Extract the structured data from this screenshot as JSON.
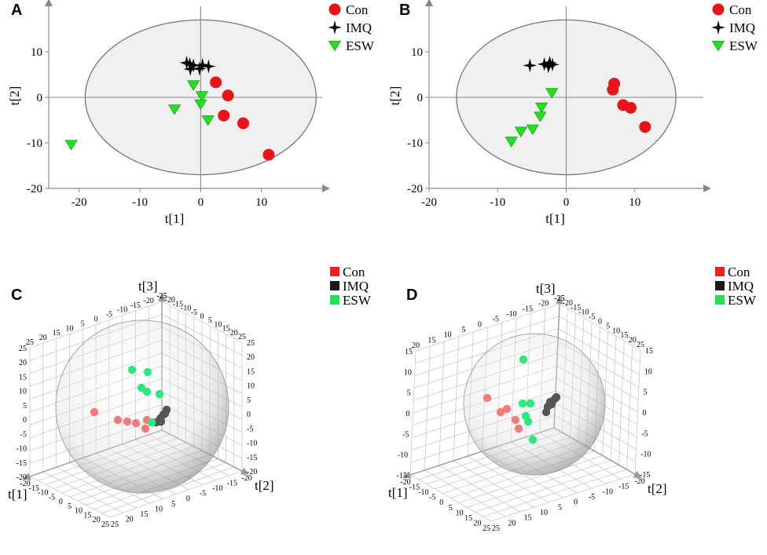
{
  "colors": {
    "con": "#e8141a",
    "imq": "#000000",
    "esw": "#22e01e",
    "ellipse_fill": "#f0f0f0",
    "ellipse_stroke": "#777777",
    "axis": "#888888"
  },
  "legend": {
    "con": "Con",
    "imq": "IMQ",
    "esw": "ESW"
  },
  "chart_data": [
    {
      "panel": "A",
      "type": "scatter",
      "xlabel": "t[1]",
      "ylabel": "t[2]",
      "xlim": [
        -25,
        20
      ],
      "ylim": [
        -20,
        20
      ],
      "xticks": [
        -20,
        -10,
        0,
        10
      ],
      "yticks": [
        -20,
        -10,
        0,
        10
      ],
      "ellipse": {
        "rx": 19,
        "ry": 17
      },
      "legend": [
        "Con",
        "IMQ",
        "ESW"
      ],
      "series": [
        {
          "name": "Con",
          "points": [
            [
              2.5,
              3.3
            ],
            [
              4.5,
              0.4
            ],
            [
              3.8,
              -4.0
            ],
            [
              7.0,
              -5.7
            ],
            [
              11.2,
              -12.6
            ]
          ]
        },
        {
          "name": "IMQ",
          "points": [
            [
              -2.3,
              7.6
            ],
            [
              -1.7,
              6.2
            ],
            [
              -1.2,
              7.0
            ],
            [
              -0.2,
              6.3
            ],
            [
              0.3,
              7.1
            ],
            [
              1.3,
              6.8
            ],
            [
              -1.8,
              7.3
            ]
          ]
        },
        {
          "name": "ESW",
          "points": [
            [
              -1.2,
              2.7
            ],
            [
              0.2,
              0.3
            ],
            [
              0.0,
              -1.5
            ],
            [
              -4.3,
              -2.6
            ],
            [
              1.2,
              -5.0
            ],
            [
              -21.3,
              -10.4
            ]
          ]
        }
      ]
    },
    {
      "panel": "B",
      "type": "scatter",
      "xlabel": "t[1]",
      "ylabel": "t[2]",
      "xlim": [
        -20,
        20
      ],
      "ylim": [
        -20,
        20
      ],
      "xticks": [
        -20,
        -10,
        0,
        10
      ],
      "yticks": [
        -20,
        -10,
        0,
        10
      ],
      "ellipse": {
        "rx": 16,
        "ry": 17
      },
      "legend": [
        "Con",
        "IMQ",
        "ESW"
      ],
      "series": [
        {
          "name": "Con",
          "points": [
            [
              6.8,
              1.7
            ],
            [
              7.0,
              3.0
            ],
            [
              8.3,
              -1.7
            ],
            [
              9.4,
              -2.3
            ],
            [
              11.5,
              -6.5
            ]
          ]
        },
        {
          "name": "IMQ",
          "points": [
            [
              -5.3,
              7.0
            ],
            [
              -3.2,
              7.3
            ],
            [
              -2.6,
              6.8
            ],
            [
              -2.0,
              7.2
            ],
            [
              -2.4,
              7.6
            ]
          ]
        },
        {
          "name": "ESW",
          "points": [
            [
              -2.1,
              1.0
            ],
            [
              -3.6,
              -2.2
            ],
            [
              -3.8,
              -4.2
            ],
            [
              -4.9,
              -7.0
            ],
            [
              -6.6,
              -7.5
            ],
            [
              -8.0,
              -9.7
            ]
          ]
        }
      ]
    },
    {
      "panel": "C",
      "type": "scatter",
      "dimensions": 3,
      "axis_labels": [
        "t[1]",
        "t[2]",
        "t[3]"
      ],
      "legend": [
        "Con",
        "IMQ",
        "ESW"
      ],
      "tick_labels": {
        "vertical_left": [
          "25",
          "20",
          "15",
          "10",
          "5",
          "0",
          "-5",
          "-10",
          "-15",
          "-20"
        ],
        "vertical_right": [
          "25",
          "20",
          "15",
          "10",
          "5",
          "0",
          "-5",
          "-10",
          "-15",
          "-20"
        ],
        "top_left": [
          "25",
          "20",
          "15",
          "10",
          "5",
          "0",
          "-5",
          "-10",
          "-15",
          "-20",
          "-25"
        ],
        "top_right": [
          "-25",
          "-20",
          "-15",
          "-10",
          "-5",
          "0",
          "5",
          "10",
          "15",
          "20",
          "25"
        ],
        "bottom_left": [
          "-20",
          "-15",
          "-10",
          "-5",
          "0",
          "5",
          "10",
          "15",
          "20",
          "25"
        ],
        "bottom_right": [
          "25",
          "20",
          "15",
          "10",
          "5",
          "0",
          "-5",
          "-10",
          "-15",
          "-20"
        ]
      },
      "series": [
        {
          "name": "Con",
          "projected_points": [
            [
              120,
              525
            ],
            [
              150,
              535
            ],
            [
              162,
              537
            ],
            [
              173,
              539
            ],
            [
              185,
              546
            ],
            [
              187,
              535
            ]
          ]
        },
        {
          "name": "IMQ",
          "projected_points": [
            [
              212,
              522
            ],
            [
              208,
              528
            ],
            [
              204,
              533
            ],
            [
              199,
              538
            ],
            [
              205,
              537
            ],
            [
              210,
              527
            ]
          ]
        },
        {
          "name": "ESW",
          "projected_points": [
            [
              168,
              471
            ],
            [
              188,
              474
            ],
            [
              180,
              494
            ],
            [
              187,
              499
            ],
            [
              203,
              502
            ],
            [
              193,
              538
            ]
          ]
        }
      ]
    },
    {
      "panel": "D",
      "type": "scatter",
      "dimensions": 3,
      "axis_labels": [
        "t[1]",
        "t[2]",
        "t[3]"
      ],
      "legend": [
        "Con",
        "IMQ",
        "ESW"
      ],
      "tick_labels": {
        "vertical_left": [
          "15",
          "10",
          "5",
          "0",
          "-5",
          "-10",
          "-15"
        ],
        "vertical_right": [
          "15",
          "10",
          "5",
          "0",
          "-5",
          "-10",
          "-15"
        ],
        "top_left": [
          "20",
          "15",
          "10",
          "5",
          "0",
          "-5",
          "-10",
          "-15",
          "-20",
          "-25"
        ],
        "top_right": [
          "-25",
          "-20",
          "-15",
          "-10",
          "-5",
          "0",
          "5",
          "10",
          "15",
          "20",
          "25"
        ],
        "bottom_left": [
          "-20",
          "-15",
          "-10",
          "-5",
          "0",
          "5",
          "10",
          "15",
          "20",
          "25"
        ],
        "bottom_right": [
          "25",
          "20",
          "15",
          "10",
          "5",
          "0",
          "-5",
          "-10",
          "-15",
          "-20"
        ]
      },
      "series": [
        {
          "name": "Con",
          "projected_points": [
            [
              620,
              507
            ],
            [
              637,
              525
            ],
            [
              645,
              521
            ],
            [
              656,
              535
            ],
            [
              660,
              546
            ]
          ]
        },
        {
          "name": "IMQ",
          "projected_points": [
            [
              706,
              508
            ],
            [
              700,
              512
            ],
            [
              697,
              518
            ],
            [
              695,
              525
            ],
            [
              702,
              515
            ],
            [
              708,
              506
            ]
          ]
        },
        {
          "name": "ESW",
          "projected_points": [
            [
              666,
              458
            ],
            [
              665,
              514
            ],
            [
              669,
              530
            ],
            [
              672,
              537
            ],
            [
              675,
              514
            ],
            [
              678,
              560
            ]
          ]
        }
      ]
    }
  ]
}
